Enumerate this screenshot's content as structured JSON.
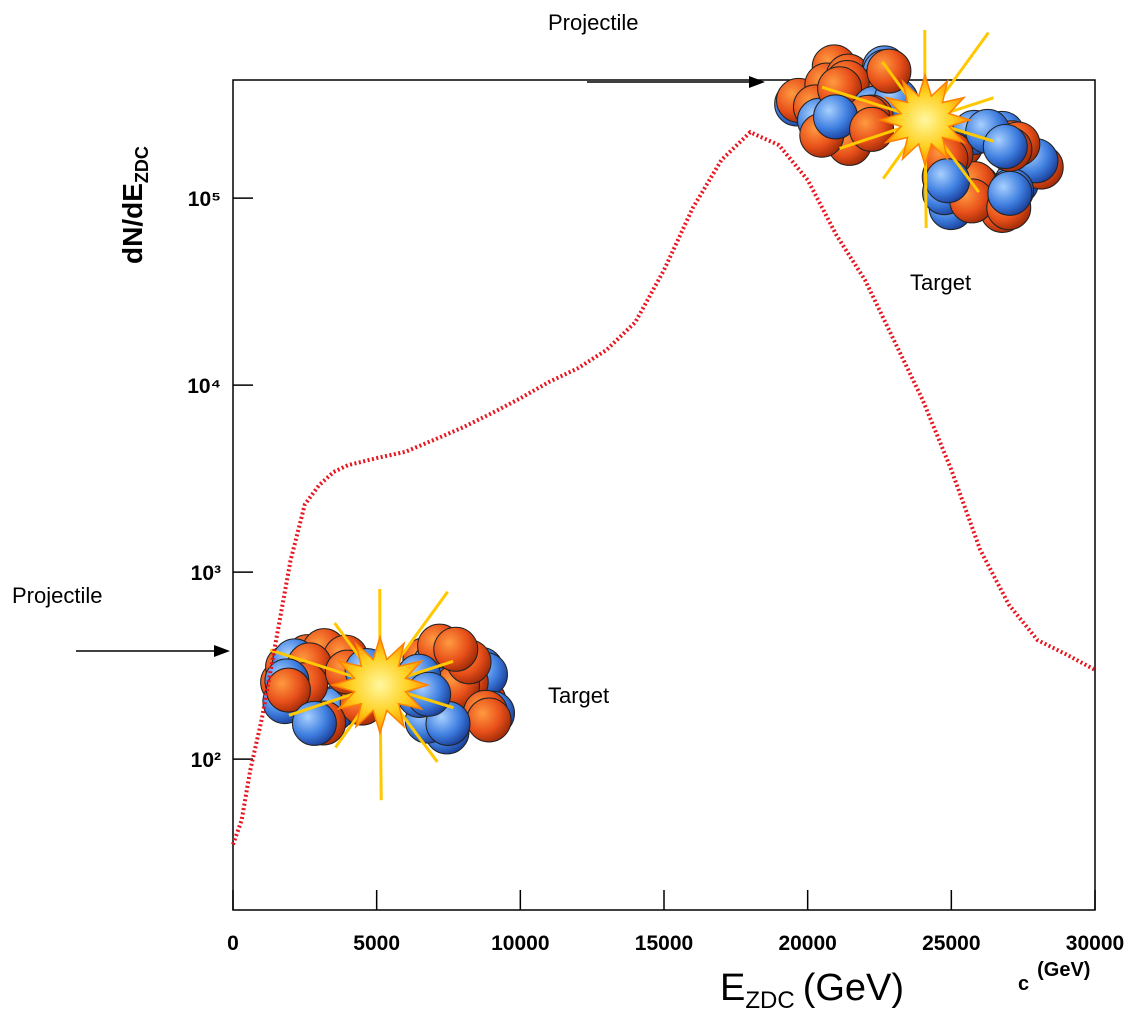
{
  "chart_data": {
    "type": "line",
    "y_label": "dN/dE",
    "y_label_sub": "ZDC",
    "x_label": "E",
    "x_label_sub": "ZDC",
    "x_label_unit": "(GeV)",
    "stray_label": "c",
    "stray_label_unit": "(GeV)",
    "annotations": [
      "Projectile",
      "Target",
      "Projectile",
      "Target"
    ],
    "x": [
      0,
      300,
      600,
      1000,
      1500,
      2000,
      2500,
      3000,
      3500,
      4000,
      5000,
      6000,
      7000,
      8000,
      9000,
      10000,
      11000,
      12000,
      13000,
      14000,
      15000,
      16000,
      17000,
      18000,
      19000,
      20000,
      21000,
      22000,
      23000,
      24000,
      25000,
      26000,
      27000,
      28000,
      29000,
      30000
    ],
    "values": [
      35,
      47,
      87,
      163,
      433,
      1150,
      2300,
      2920,
      3430,
      3730,
      4070,
      4400,
      5100,
      5940,
      7070,
      8500,
      10400,
      12300,
      15400,
      21700,
      41200,
      88400,
      160000,
      225000,
      192000,
      125000,
      63400,
      36400,
      17400,
      8340,
      3530,
      1320,
      670,
      433,
      363,
      300
    ],
    "color": "#e8141e",
    "log_y": true,
    "xlim": [
      0,
      30000
    ],
    "ylim": [
      15.6,
      428000
    ],
    "xticks": [
      0,
      5000,
      10000,
      15000,
      20000,
      25000,
      30000
    ],
    "yticks": [
      {
        "value": 100,
        "label": "10²"
      },
      {
        "value": 1000,
        "label": "10³"
      },
      {
        "value": 10000,
        "label": "10⁴"
      },
      {
        "value": 100000,
        "label": "10⁵"
      }
    ]
  }
}
